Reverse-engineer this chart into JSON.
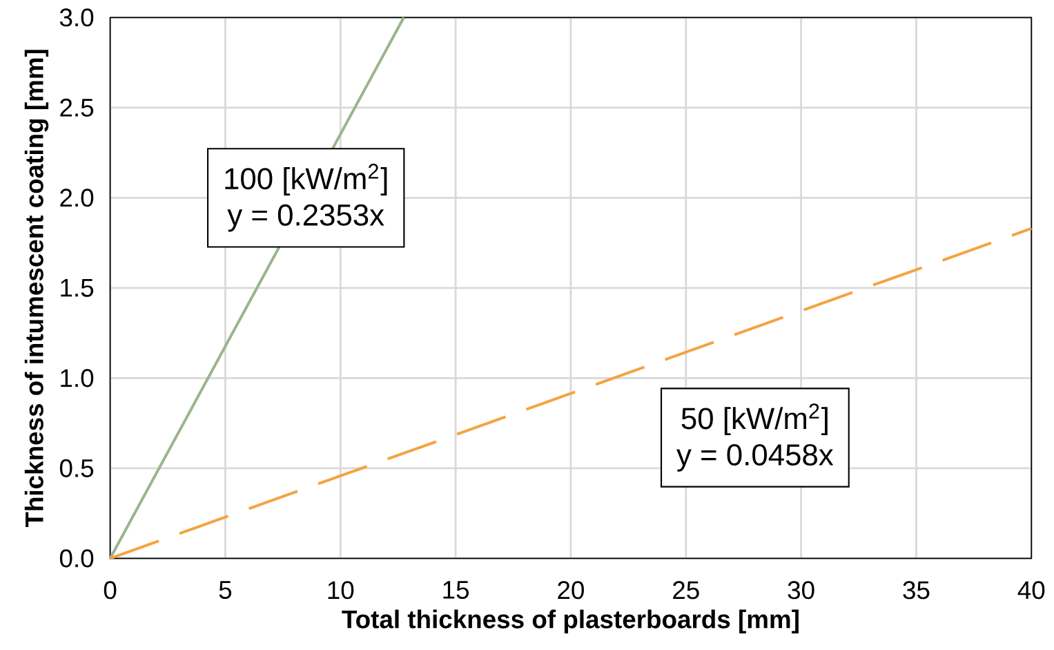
{
  "chart_data": {
    "type": "line",
    "xlabel": "Total thickness of plasterboards [mm]",
    "ylabel": "Thickness of intumescent coating [mm]",
    "series": [
      {
        "name": "100 [kW/m$^{2}$]",
        "color": "#9bb58b",
        "x": [
          0,
          12.75
        ],
        "values": [
          0,
          3.0
        ],
        "line_style": "solid"
      },
      {
        "name": "50 [kW/m$^{2}$]",
        "color": "#f4a340",
        "x": [
          0,
          40
        ],
        "values": [
          0,
          1.83
        ],
        "line_style": "dashed"
      }
    ],
    "annotations": [
      "y = 0.2353x",
      "y = 0.0458x"
    ],
    "xlim": [
      0,
      40
    ],
    "ylim": [
      0,
      3.0
    ],
    "xticks": [
      0,
      5,
      10,
      15,
      20,
      25,
      30,
      35,
      40
    ],
    "yticks": [
      {
        "value": 0,
        "label": "0.0"
      },
      {
        "value": 0.5,
        "label": "0.5"
      },
      {
        "value": 1.0,
        "label": "1.0"
      },
      {
        "value": 1.5,
        "label": "1.5"
      },
      {
        "value": 2.0,
        "label": "2.0"
      },
      {
        "value": 2.5,
        "label": "2.5"
      },
      {
        "value": 3.0,
        "label": "3.0"
      }
    ],
    "grid": true,
    "marker": "none"
  }
}
